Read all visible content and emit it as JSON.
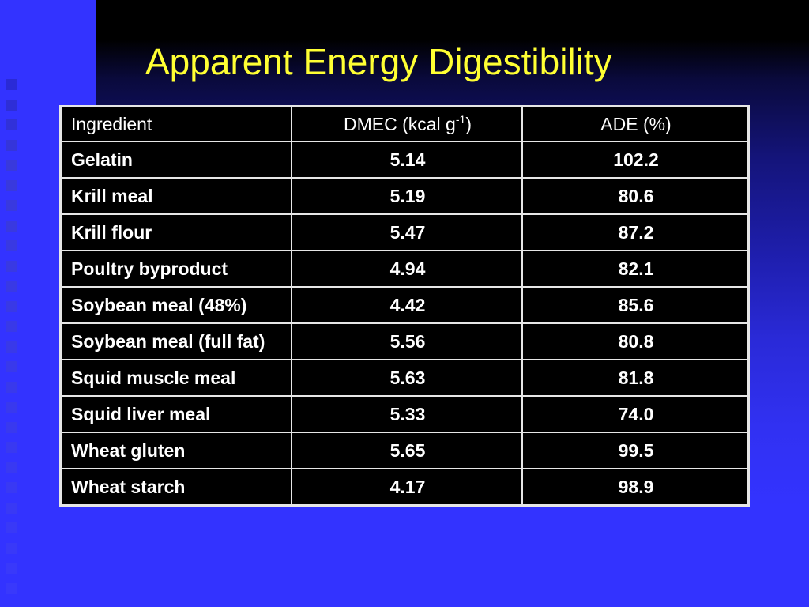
{
  "slide": {
    "title": "Apparent Energy Digestibility"
  },
  "table": {
    "headers": {
      "ingredient": "Ingredient",
      "dmec_main": "DMEC (kcal g",
      "dmec_sup": "-1",
      "dmec_close": ")",
      "ade": "ADE (%)"
    },
    "rows": [
      {
        "ingredient": "Gelatin",
        "dmec": "5.14",
        "ade": "102.2"
      },
      {
        "ingredient": "Krill meal",
        "dmec": "5.19",
        "ade": "80.6"
      },
      {
        "ingredient": "Krill flour",
        "dmec": "5.47",
        "ade": "87.2"
      },
      {
        "ingredient": "Poultry byproduct",
        "dmec": "4.94",
        "ade": "82.1"
      },
      {
        "ingredient": "Soybean meal (48%)",
        "dmec": "4.42",
        "ade": "85.6"
      },
      {
        "ingredient": "Soybean meal (full fat)",
        "dmec": "5.56",
        "ade": "80.8"
      },
      {
        "ingredient": "Squid muscle meal",
        "dmec": "5.63",
        "ade": "81.8"
      },
      {
        "ingredient": "Squid liver meal",
        "dmec": "5.33",
        "ade": "74.0"
      },
      {
        "ingredient": "Wheat gluten",
        "dmec": "5.65",
        "ade": "99.5"
      },
      {
        "ingredient": "Wheat starch",
        "dmec": "4.17",
        "ade": "98.9"
      }
    ]
  },
  "colors": {
    "background": "#3333ff",
    "title": "#ffff33",
    "table_bg": "#000000",
    "table_text": "#ffffff",
    "grid": "#e6e6e6"
  }
}
